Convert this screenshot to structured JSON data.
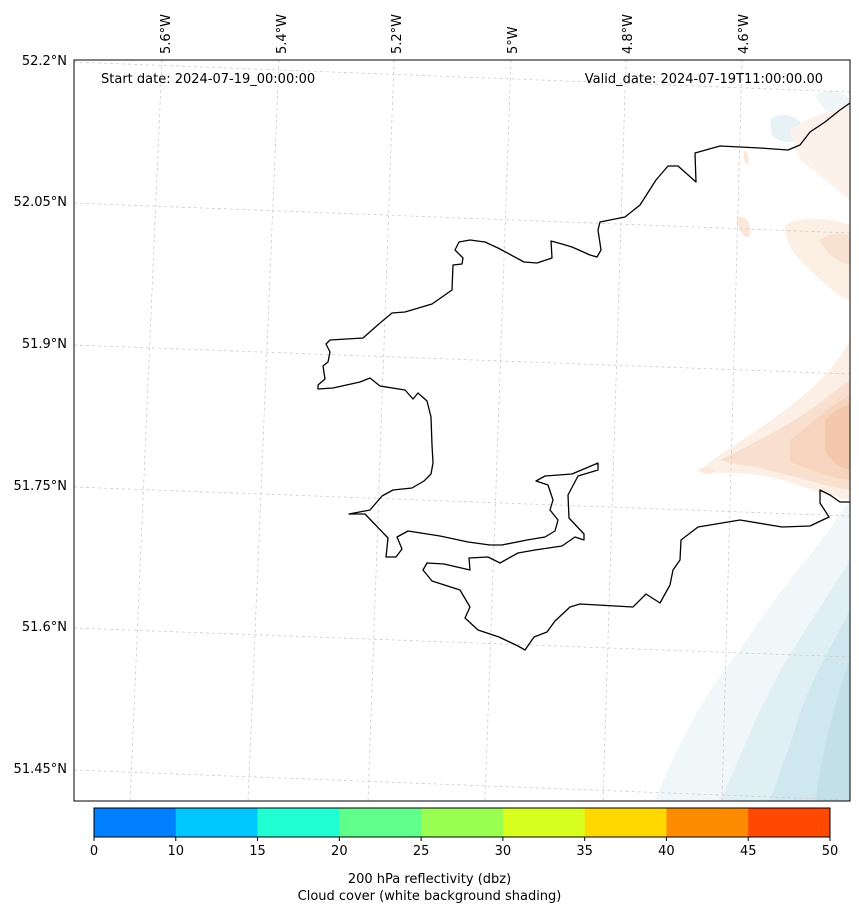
{
  "map": {
    "start_date_text": "Start date: 2024-07-19_00:00:00",
    "valid_date_text": "Valid_date: 2024-07-19T11:00:00.00",
    "lon_labels": [
      "5.6°W",
      "5.4°W",
      "5.2°W",
      "5°W",
      "4.8°W",
      "4.6°W"
    ],
    "lat_labels": [
      "52.2°N",
      "52.05°N",
      "51.9°N",
      "51.75°N",
      "51.6°N",
      "51.45°N"
    ],
    "coastline_color": "#000000",
    "gridline_color": "#cccccc",
    "gridlines": "dashed",
    "overlays": [
      "orange reflectivity shading along east edge",
      "light blue cloud shading in southeast corner"
    ]
  },
  "colorbar": {
    "ticks": [
      "0",
      "10",
      "15",
      "20",
      "25",
      "30",
      "35",
      "40",
      "45",
      "50"
    ],
    "colors": [
      "#0080ff",
      "#00c8ff",
      "#20ffd2",
      "#60ff8c",
      "#99ff50",
      "#d8ff20",
      "#ffd800",
      "#ff8c00",
      "#ff4800"
    ],
    "label_line1": "200 hPa reflectivity (dbz)",
    "label_line2": "Cloud cover (white background shading)"
  }
}
